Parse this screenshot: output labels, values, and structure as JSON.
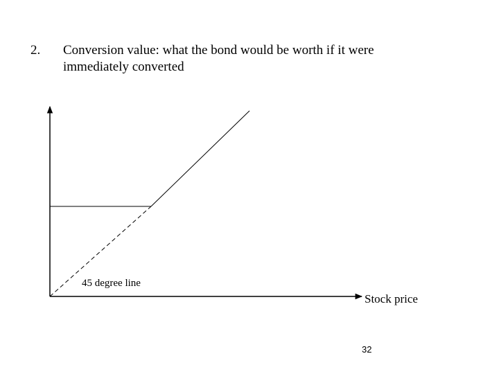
{
  "item": {
    "number": "2.",
    "lines": [
      "Conversion value: what the bond would be worth if it were",
      "immediately converted"
    ]
  },
  "diagram": {
    "line_label": "45 degree line",
    "x_axis_label": "Stock price"
  },
  "footer": {
    "page_number": "32"
  }
}
